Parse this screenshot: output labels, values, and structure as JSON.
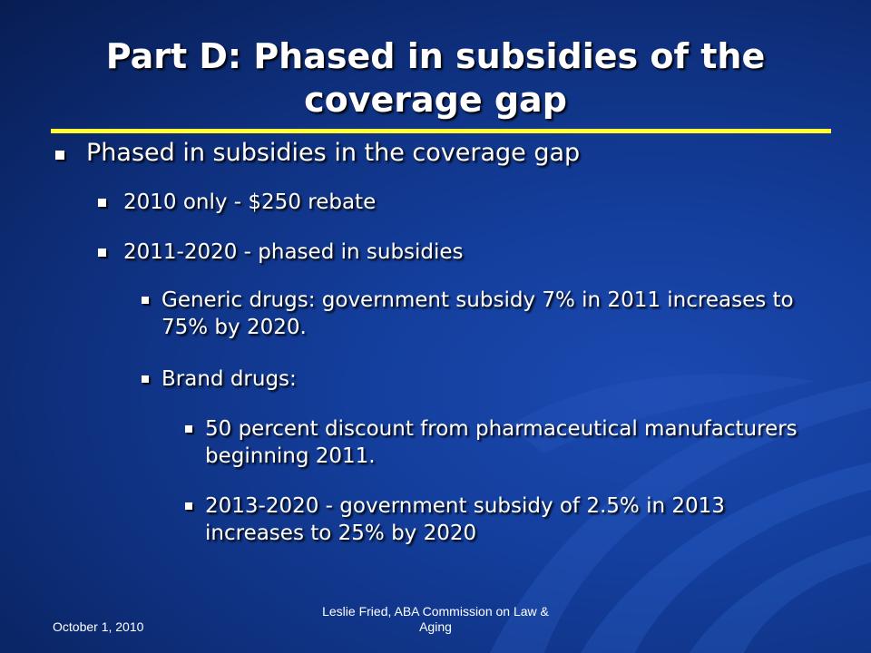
{
  "slide": {
    "title": "Part D: Phased in subsidies of the coverage gap",
    "bullets": [
      {
        "level": 1,
        "text": "Phased in subsidies in the coverage gap"
      },
      {
        "level": 2,
        "text": "2010 only - $250 rebate"
      },
      {
        "level": 2,
        "text": "2011-2020 - phased in subsidies"
      },
      {
        "level": 3,
        "text": "Generic drugs: government subsidy 7% in 2011 increases to 75% by 2020."
      },
      {
        "level": 3,
        "text": "Brand drugs:"
      },
      {
        "level": 4,
        "text": "50 percent discount from pharmaceutical manufacturers beginning 2011."
      },
      {
        "level": 4,
        "text": "2013-2020 - government subsidy of 2.5% in 2013 increases to 25% by 2020"
      }
    ],
    "footer": {
      "date": "October 1, 2010",
      "presenter": "Leslie Fried, ABA Commission on Law & Aging"
    }
  },
  "colors": {
    "background": "#143f9e",
    "title_rule": "#ffff33",
    "text": "#ffffff"
  }
}
